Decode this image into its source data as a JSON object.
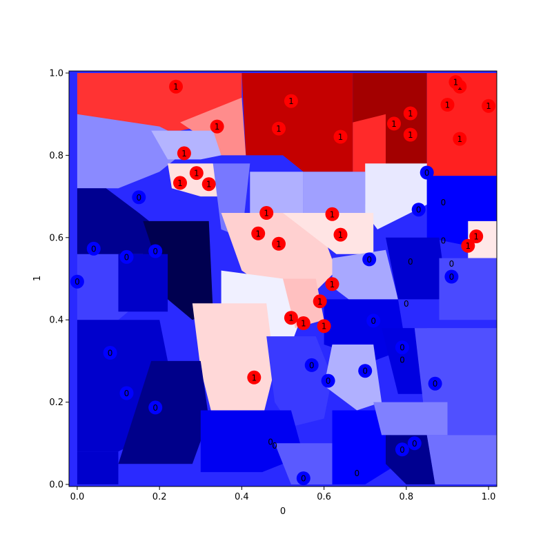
{
  "chart_data": {
    "type": "scatter",
    "title": "",
    "xlabel": "0",
    "ylabel": "1",
    "xlim": [
      -0.02,
      1.02
    ],
    "ylim": [
      -0.005,
      1.005
    ],
    "xticks": [
      "0.0",
      "0.2",
      "0.4",
      "0.6",
      "0.8",
      "1.0"
    ],
    "yticks": [
      "0.0",
      "0.2",
      "0.4",
      "0.6",
      "0.8",
      "1.0"
    ],
    "grid": false,
    "legend": "none",
    "colors": {
      "class_1": "#ff0000",
      "class_0": "#0000ff",
      "background_extremes": [
        "#00004c",
        "#7f0000"
      ]
    },
    "background_regions": [
      {
        "x": [
          0.0,
          0.4,
          0.4,
          0.3,
          0.25,
          0.1,
          0.0
        ],
        "y": [
          1.0,
          1.0,
          0.88,
          0.87,
          0.86,
          0.86,
          0.9
        ],
        "color": "#ff3333"
      },
      {
        "x": [
          0.4,
          0.67,
          0.67,
          0.55,
          0.5,
          0.41
        ],
        "y": [
          1.0,
          1.0,
          0.76,
          0.76,
          0.8,
          0.8
        ],
        "color": "#c40000"
      },
      {
        "x": [
          0.67,
          0.85,
          0.85,
          0.72,
          0.67
        ],
        "y": [
          1.0,
          1.0,
          0.78,
          0.76,
          0.76
        ],
        "color": "#a30000"
      },
      {
        "x": [
          0.67,
          0.75,
          0.75,
          0.67
        ],
        "y": [
          0.88,
          0.9,
          0.76,
          0.76
        ],
        "color": "#ff2a2a"
      },
      {
        "x": [
          0.85,
          1.02,
          1.02,
          0.85
        ],
        "y": [
          1.0,
          1.0,
          0.75,
          0.75
        ],
        "color": "#ff2020"
      },
      {
        "x": [
          0.25,
          0.4,
          0.41,
          0.33,
          0.28
        ],
        "y": [
          0.88,
          0.94,
          0.8,
          0.8,
          0.86
        ],
        "color": "#ff8c8c"
      },
      {
        "x": [
          0.0,
          0.2,
          0.24,
          0.25,
          0.2,
          0.1,
          0.0
        ],
        "y": [
          0.9,
          0.87,
          0.85,
          0.8,
          0.76,
          0.72,
          0.72
        ],
        "color": "#8a8aff"
      },
      {
        "x": [
          0.18,
          0.33,
          0.35,
          0.3,
          0.22
        ],
        "y": [
          0.86,
          0.86,
          0.8,
          0.79,
          0.79
        ],
        "color": "#b4b4ff"
      },
      {
        "x": [
          0.22,
          0.33,
          0.35,
          0.3,
          0.23
        ],
        "y": [
          0.78,
          0.78,
          0.7,
          0.7,
          0.72
        ],
        "color": "#ffe0e0"
      },
      {
        "x": [
          0.33,
          0.42,
          0.4,
          0.35
        ],
        "y": [
          0.78,
          0.78,
          0.6,
          0.62
        ],
        "color": "#7878ff"
      },
      {
        "x": [
          0.42,
          0.55,
          0.55,
          0.48,
          0.42
        ],
        "y": [
          0.76,
          0.76,
          0.66,
          0.66,
          0.62
        ],
        "color": "#b0b0ff"
      },
      {
        "x": [
          0.55,
          0.7,
          0.7,
          0.55
        ],
        "y": [
          0.76,
          0.76,
          0.66,
          0.66
        ],
        "color": "#a0a0ff"
      },
      {
        "x": [
          0.7,
          0.85,
          0.85,
          0.73,
          0.7
        ],
        "y": [
          0.78,
          0.78,
          0.68,
          0.62,
          0.66
        ],
        "color": "#e8e8ff"
      },
      {
        "x": [
          0.85,
          1.02,
          1.02,
          0.95,
          0.85
        ],
        "y": [
          0.75,
          0.75,
          0.64,
          0.58,
          0.6
        ],
        "color": "#0000ff"
      },
      {
        "x": [
          0.95,
          1.02,
          1.02,
          0.95
        ],
        "y": [
          0.64,
          0.64,
          0.55,
          0.55
        ],
        "color": "#ffe8e8"
      },
      {
        "x": [
          0.0,
          0.07,
          0.15,
          0.2,
          0.16,
          0.05,
          0.0
        ],
        "y": [
          0.72,
          0.72,
          0.66,
          0.62,
          0.52,
          0.52,
          0.56
        ],
        "color": "#000090"
      },
      {
        "x": [
          0.16,
          0.32,
          0.33,
          0.28,
          0.22,
          0.2
        ],
        "y": [
          0.64,
          0.64,
          0.42,
          0.4,
          0.45,
          0.52
        ],
        "color": "#000050"
      },
      {
        "x": [
          0.0,
          0.16,
          0.16,
          0.1,
          0.0
        ],
        "y": [
          0.56,
          0.56,
          0.45,
          0.4,
          0.4
        ],
        "color": "#4040ff"
      },
      {
        "x": [
          0.1,
          0.22,
          0.22,
          0.1
        ],
        "y": [
          0.56,
          0.56,
          0.42,
          0.42
        ],
        "color": "#0000c8"
      },
      {
        "x": [
          0.35,
          0.55,
          0.6,
          0.63,
          0.58,
          0.5,
          0.4
        ],
        "y": [
          0.66,
          0.66,
          0.6,
          0.52,
          0.47,
          0.45,
          0.52
        ],
        "color": "#ffd0d0"
      },
      {
        "x": [
          0.5,
          0.72,
          0.72,
          0.63
        ],
        "y": [
          0.66,
          0.66,
          0.56,
          0.56
        ],
        "color": "#ffe4e4"
      },
      {
        "x": [
          0.35,
          0.5,
          0.55,
          0.52,
          0.45,
          0.35
        ],
        "y": [
          0.52,
          0.5,
          0.42,
          0.34,
          0.32,
          0.42
        ],
        "color": "#f0f0ff"
      },
      {
        "x": [
          0.5,
          0.58,
          0.6,
          0.53
        ],
        "y": [
          0.5,
          0.5,
          0.4,
          0.38
        ],
        "color": "#ffc0c0"
      },
      {
        "x": [
          0.62,
          0.75,
          0.78,
          0.7,
          0.62
        ],
        "y": [
          0.55,
          0.57,
          0.45,
          0.42,
          0.48
        ],
        "color": "#a8a8ff"
      },
      {
        "x": [
          0.75,
          0.88,
          0.9,
          0.78
        ],
        "y": [
          0.6,
          0.6,
          0.45,
          0.45
        ],
        "color": "#0000d0"
      },
      {
        "x": [
          0.88,
          1.02,
          1.02,
          0.88
        ],
        "y": [
          0.55,
          0.55,
          0.4,
          0.4
        ],
        "color": "#4a4aff"
      },
      {
        "x": [
          0.6,
          0.78,
          0.8,
          0.72,
          0.6
        ],
        "y": [
          0.45,
          0.45,
          0.33,
          0.3,
          0.34
        ],
        "color": "#0000e6"
      },
      {
        "x": [
          0.28,
          0.46,
          0.48,
          0.45,
          0.33,
          0.3
        ],
        "y": [
          0.44,
          0.44,
          0.28,
          0.16,
          0.16,
          0.28
        ],
        "color": "#ffd8d8"
      },
      {
        "x": [
          0.46,
          0.58,
          0.62,
          0.6,
          0.52,
          0.48
        ],
        "y": [
          0.36,
          0.36,
          0.26,
          0.16,
          0.14,
          0.2
        ],
        "color": "#3a3aff"
      },
      {
        "x": [
          0.62,
          0.72,
          0.74,
          0.68,
          0.6
        ],
        "y": [
          0.34,
          0.34,
          0.2,
          0.18,
          0.24
        ],
        "color": "#b0b0ff"
      },
      {
        "x": [
          0.74,
          0.85,
          0.86,
          0.78
        ],
        "y": [
          0.38,
          0.38,
          0.22,
          0.22
        ],
        "color": "#0000e0"
      },
      {
        "x": [
          0.82,
          1.02,
          1.02,
          0.85
        ],
        "y": [
          0.38,
          0.38,
          0.12,
          0.12
        ],
        "color": "#5050ff"
      },
      {
        "x": [
          0.0,
          0.2,
          0.22,
          0.18,
          0.1,
          0.0
        ],
        "y": [
          0.4,
          0.4,
          0.3,
          0.12,
          0.08,
          0.08
        ],
        "color": "#0000cc"
      },
      {
        "x": [
          0.18,
          0.3,
          0.32,
          0.28,
          0.1
        ],
        "y": [
          0.3,
          0.3,
          0.16,
          0.05,
          0.05
        ],
        "color": "#00008a"
      },
      {
        "x": [
          0.3,
          0.52,
          0.55,
          0.45,
          0.3
        ],
        "y": [
          0.18,
          0.18,
          0.07,
          0.03,
          0.03
        ],
        "color": "#0000f2"
      },
      {
        "x": [
          0.48,
          0.62,
          0.62,
          0.52
        ],
        "y": [
          0.1,
          0.1,
          0.0,
          0.0
        ],
        "color": "#5a5aff"
      },
      {
        "x": [
          0.62,
          0.75,
          0.78,
          0.7,
          0.62
        ],
        "y": [
          0.18,
          0.18,
          0.05,
          0.0,
          0.0
        ],
        "color": "#0000ff"
      },
      {
        "x": [
          0.75,
          0.85,
          0.87,
          0.8,
          0.75
        ],
        "y": [
          0.12,
          0.12,
          0.0,
          0.0,
          0.05
        ],
        "color": "#000090"
      },
      {
        "x": [
          0.72,
          0.9,
          0.9,
          0.74
        ],
        "y": [
          0.2,
          0.2,
          0.12,
          0.12
        ],
        "color": "#8080ff"
      },
      {
        "x": [
          0.85,
          1.02,
          1.02,
          0.87
        ],
        "y": [
          0.12,
          0.12,
          0.0,
          0.0
        ],
        "color": "#7070ff"
      },
      {
        "x": [
          0.0,
          0.1,
          0.1,
          0.0
        ],
        "y": [
          0.08,
          0.08,
          0.0,
          0.0
        ],
        "color": "#0000cc"
      }
    ],
    "series": [
      {
        "name": "1",
        "color": "#ff0000",
        "points": [
          [
            0.24,
            0.967
          ],
          [
            0.52,
            0.932
          ],
          [
            0.49,
            0.865
          ],
          [
            0.34,
            0.87
          ],
          [
            0.64,
            0.845
          ],
          [
            0.26,
            0.805
          ],
          [
            0.29,
            0.757
          ],
          [
            0.25,
            0.733
          ],
          [
            0.32,
            0.73
          ],
          [
            0.77,
            0.877
          ],
          [
            0.81,
            0.902
          ],
          [
            0.81,
            0.85
          ],
          [
            0.9,
            0.923
          ],
          [
            0.93,
            0.967
          ],
          [
            0.92,
            0.978
          ],
          [
            1.0,
            0.92
          ],
          [
            0.93,
            0.84
          ],
          [
            0.46,
            0.66
          ],
          [
            0.44,
            0.61
          ],
          [
            0.49,
            0.585
          ],
          [
            0.62,
            0.657
          ],
          [
            0.64,
            0.607
          ],
          [
            0.97,
            0.603
          ],
          [
            0.95,
            0.58
          ],
          [
            0.62,
            0.487
          ],
          [
            0.59,
            0.445
          ],
          [
            0.52,
            0.405
          ],
          [
            0.55,
            0.392
          ],
          [
            0.6,
            0.385
          ],
          [
            0.43,
            0.26
          ]
        ]
      },
      {
        "name": "0",
        "color": "#0000ff",
        "points": [
          [
            0.15,
            0.698
          ],
          [
            0.85,
            0.758
          ],
          [
            0.83,
            0.668
          ],
          [
            0.04,
            0.573
          ],
          [
            0.12,
            0.553
          ],
          [
            0.19,
            0.567
          ],
          [
            0.71,
            0.547
          ],
          [
            0.91,
            0.505
          ],
          [
            0.0,
            0.493
          ],
          [
            0.72,
            0.398
          ],
          [
            0.57,
            0.29
          ],
          [
            0.61,
            0.252
          ],
          [
            0.7,
            0.276
          ],
          [
            0.79,
            0.333
          ],
          [
            0.08,
            0.32
          ],
          [
            0.12,
            0.222
          ],
          [
            0.19,
            0.187
          ],
          [
            0.87,
            0.245
          ],
          [
            0.82,
            0.1
          ],
          [
            0.79,
            0.085
          ],
          [
            0.55,
            0.015
          ]
        ]
      }
    ],
    "hidden_labels_0": [
      [
        0.89,
        0.686
      ],
      [
        0.89,
        0.593
      ],
      [
        0.91,
        0.537
      ],
      [
        0.81,
        0.542
      ],
      [
        0.8,
        0.44
      ],
      [
        0.79,
        0.303
      ],
      [
        0.47,
        0.104
      ],
      [
        0.48,
        0.095
      ],
      [
        0.68,
        0.028
      ]
    ]
  }
}
